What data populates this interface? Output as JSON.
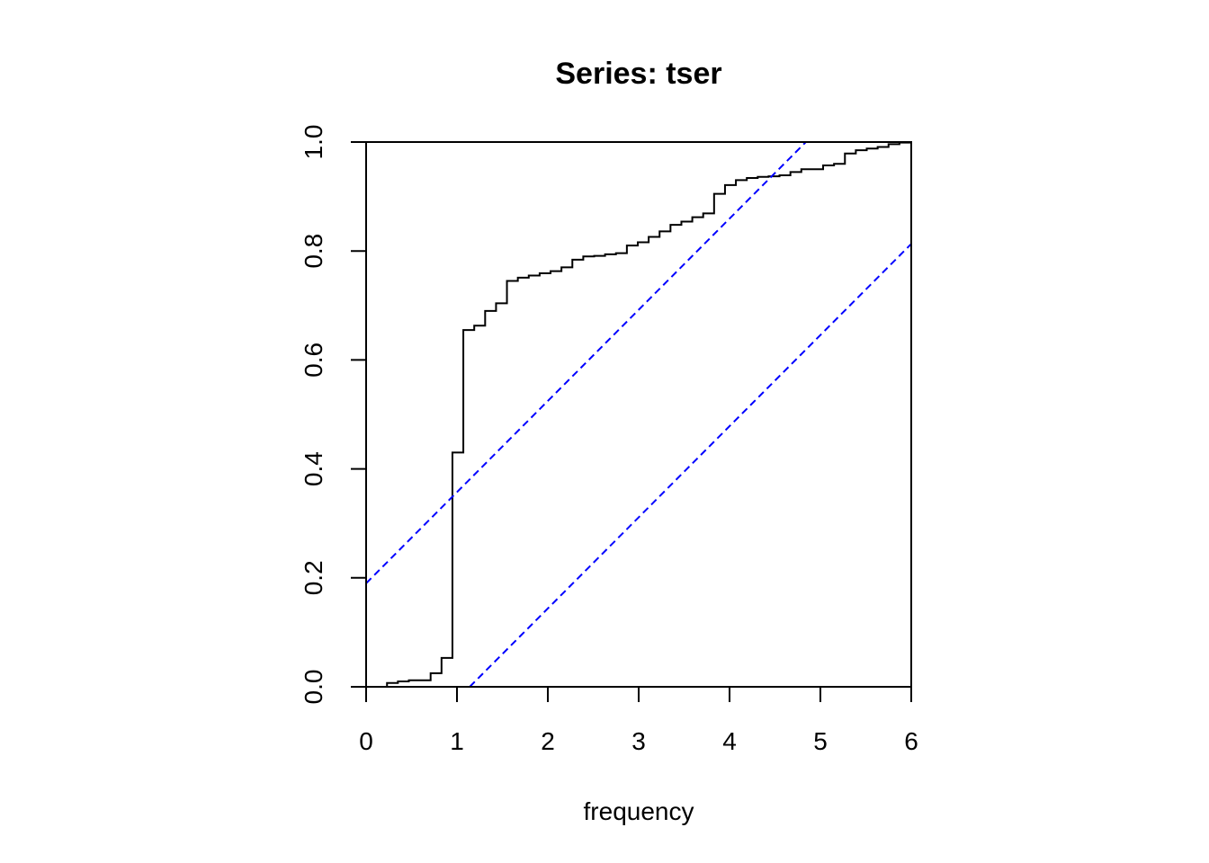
{
  "chart_data": {
    "type": "line",
    "title": "Series:  tser",
    "xlabel": "frequency",
    "ylabel": "",
    "xlim": [
      0,
      6
    ],
    "ylim": [
      0,
      1
    ],
    "x_ticks": [
      "0",
      "1",
      "2",
      "3",
      "4",
      "5",
      "6"
    ],
    "y_ticks": [
      "0.0",
      "0.2",
      "0.4",
      "0.6",
      "0.8",
      "1.0"
    ],
    "grid": false,
    "legend": "none",
    "series": [
      {
        "style": "step",
        "color": "#000000",
        "x": [
          0.0,
          0.23,
          0.35,
          0.47,
          0.71,
          0.83,
          0.95,
          1.07,
          1.19,
          1.31,
          1.43,
          1.55,
          1.67,
          1.79,
          1.91,
          2.03,
          2.15,
          2.27,
          2.39,
          2.51,
          2.63,
          2.75,
          2.87,
          2.99,
          3.11,
          3.23,
          3.35,
          3.47,
          3.59,
          3.71,
          3.83,
          3.95,
          4.07,
          4.19,
          4.31,
          4.43,
          4.55,
          4.67,
          4.79,
          5.03,
          5.15,
          5.27,
          5.39,
          5.51,
          5.63,
          5.75,
          5.87,
          6.0
        ],
        "y": [
          0.0,
          0.007,
          0.01,
          0.012,
          0.025,
          0.053,
          0.43,
          0.655,
          0.663,
          0.69,
          0.704,
          0.745,
          0.751,
          0.755,
          0.759,
          0.763,
          0.77,
          0.784,
          0.79,
          0.791,
          0.794,
          0.796,
          0.81,
          0.816,
          0.826,
          0.836,
          0.848,
          0.854,
          0.862,
          0.869,
          0.905,
          0.921,
          0.93,
          0.934,
          0.936,
          0.937,
          0.939,
          0.945,
          0.95,
          0.957,
          0.96,
          0.979,
          0.985,
          0.988,
          0.991,
          0.996,
          0.999,
          1.0
        ]
      },
      {
        "style": "dashed",
        "color": "#0000ff",
        "x": [
          0,
          4.84
        ],
        "y": [
          0.19,
          1.0
        ]
      },
      {
        "style": "dashed",
        "color": "#0000ff",
        "x": [
          1.14,
          6.0
        ],
        "y": [
          0.0,
          0.813
        ]
      }
    ]
  }
}
